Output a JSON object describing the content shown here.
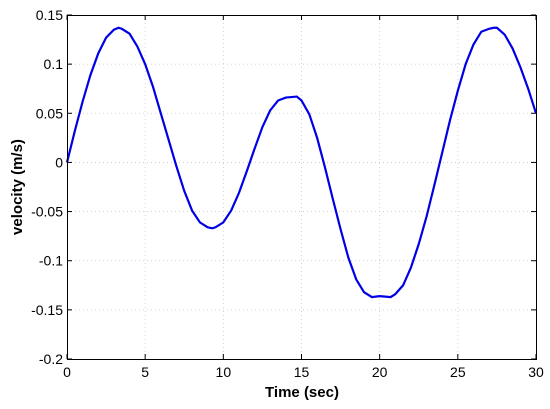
{
  "chart_data": {
    "type": "line",
    "title": "",
    "xlabel": "Time (sec)",
    "ylabel": "velocity (m/s)",
    "xlim": [
      0,
      30
    ],
    "ylim": [
      -0.2,
      0.15
    ],
    "x_ticks": [
      "0",
      "5",
      "10",
      "15",
      "20",
      "25",
      "30"
    ],
    "x_tick_values": [
      0,
      5,
      10,
      15,
      20,
      25,
      30
    ],
    "y_ticks": [
      "-0.2",
      "-0.15",
      "-0.1",
      "-0.05",
      "0",
      "0.05",
      "0.1",
      "0.15"
    ],
    "y_tick_values": [
      -0.2,
      -0.15,
      -0.1,
      -0.05,
      0,
      0.05,
      0.1,
      0.15
    ],
    "grid": true,
    "series": [
      {
        "color": "#0000e6",
        "x": [
          0,
          0.5,
          1,
          1.5,
          2,
          2.5,
          3,
          3.3,
          3.5,
          4,
          4.5,
          5,
          5.5,
          6,
          6.5,
          7,
          7.5,
          8,
          8.5,
          9,
          9.3,
          9.5,
          10,
          10.5,
          11,
          11.5,
          12,
          12.5,
          13,
          13.5,
          14,
          14.7,
          15,
          15.5,
          16,
          16.5,
          17,
          17.5,
          18,
          18.5,
          19,
          19.5,
          20,
          20.7,
          21,
          21.5,
          22,
          22.5,
          23,
          23.5,
          24,
          24.5,
          25,
          25.5,
          26,
          26.5,
          27,
          27.3,
          27.5,
          28,
          28.5,
          29,
          29.5,
          30
        ],
        "y": [
          0,
          0.032,
          0.062,
          0.089,
          0.111,
          0.127,
          0.135,
          0.137,
          0.136,
          0.131,
          0.118,
          0.1,
          0.077,
          0.05,
          0.023,
          -0.004,
          -0.029,
          -0.049,
          -0.061,
          -0.066,
          -0.067,
          -0.066,
          -0.061,
          -0.049,
          -0.031,
          -0.009,
          0.014,
          0.036,
          0.053,
          0.063,
          0.066,
          0.067,
          0.063,
          0.049,
          0.025,
          -0.005,
          -0.037,
          -0.068,
          -0.097,
          -0.119,
          -0.132,
          -0.137,
          -0.136,
          -0.137,
          -0.134,
          -0.125,
          -0.107,
          -0.083,
          -0.055,
          -0.023,
          0.01,
          0.043,
          0.073,
          0.1,
          0.12,
          0.133,
          0.136,
          0.137,
          0.137,
          0.13,
          0.116,
          0.097,
          0.075,
          0.05
        ]
      }
    ]
  }
}
